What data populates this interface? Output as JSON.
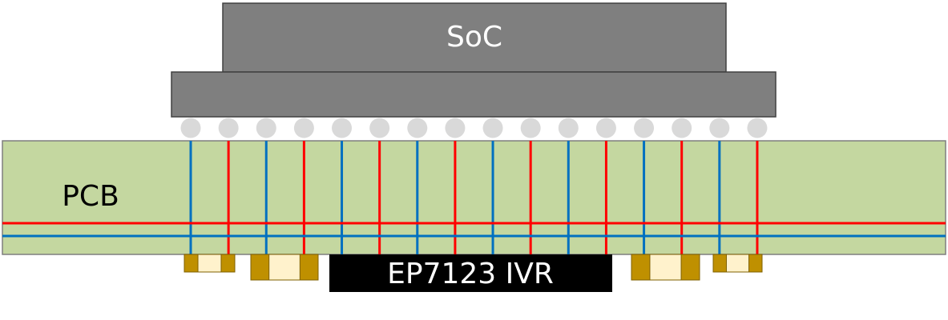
{
  "diagram": {
    "soc": {
      "label": "SoC"
    },
    "pcb": {
      "label": "PCB"
    },
    "ivr": {
      "label": "EP7123 IVR"
    }
  }
}
